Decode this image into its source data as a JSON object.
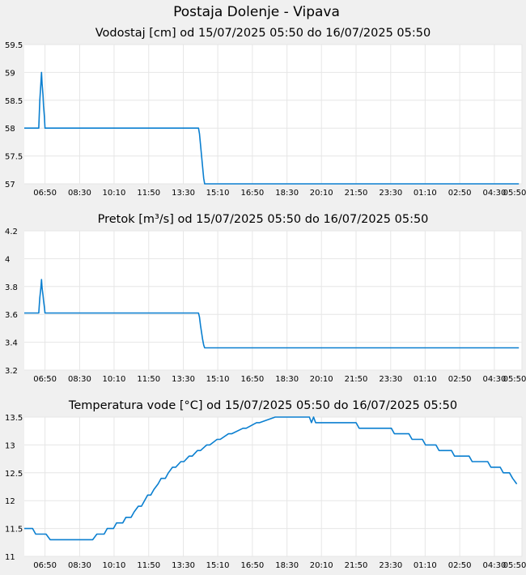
{
  "page_title": "Postaja Dolenje - Vipava",
  "colors": {
    "page_background": "#f0f0f0",
    "plot_background": "#ffffff",
    "grid": "#e6e6e6",
    "line": "#0a7fd0"
  },
  "chart_data": [
    {
      "type": "line",
      "title": "Vodostaj [cm] od 15/07/2025 05:50 do 16/07/2025 05:50",
      "x_unit": "hours since 15/07/2025 05:50",
      "xlim": [
        0,
        24
      ],
      "ylim": [
        57,
        59.5
      ],
      "y_ticks": [
        57,
        57.5,
        58,
        58.5,
        59,
        59.5
      ],
      "y_tick_labels": [
        "57",
        "57.5",
        "58",
        "58.5",
        "59",
        "59.5"
      ],
      "x_ticks": [
        1,
        2.67,
        4.33,
        6,
        7.67,
        9.33,
        11,
        12.67,
        14.33,
        16,
        17.67,
        19.33,
        21,
        22.67,
        24
      ],
      "x_tick_labels": [
        "06:50",
        "08:30",
        "10:10",
        "11:50",
        "13:30",
        "15:10",
        "16:50",
        "18:30",
        "20:10",
        "21:50",
        "23:30",
        "01:10",
        "02:50",
        "04:30",
        "05:50"
      ],
      "grid": true,
      "series": [
        {
          "x": [
            0,
            0.7,
            0.75,
            0.8,
            0.83,
            0.86,
            0.9,
            0.93,
            0.97,
            1.0,
            1.05,
            8.4,
            8.45,
            8.5,
            8.55,
            8.6,
            8.65,
            8.7,
            23.85
          ],
          "y": [
            58,
            58,
            58.5,
            58.8,
            59,
            58.8,
            58.6,
            58.4,
            58.2,
            58,
            58,
            58,
            57.9,
            57.7,
            57.5,
            57.3,
            57.1,
            57,
            57
          ]
        }
      ]
    },
    {
      "type": "line",
      "title": "Pretok [m³/s] od 15/07/2025 05:50 do 16/07/2025 05:50",
      "x_unit": "hours since 15/07/2025 05:50",
      "xlim": [
        0,
        24
      ],
      "ylim": [
        3.2,
        4.2
      ],
      "y_ticks": [
        3.2,
        3.4,
        3.6,
        3.8,
        4.0,
        4.2
      ],
      "y_tick_labels": [
        "3.2",
        "3.4",
        "3.6",
        "3.8",
        "4",
        "4.2"
      ],
      "x_ticks": [
        1,
        2.67,
        4.33,
        6,
        7.67,
        9.33,
        11,
        12.67,
        14.33,
        16,
        17.67,
        19.33,
        21,
        22.67,
        24
      ],
      "x_tick_labels": [
        "06:50",
        "08:30",
        "10:10",
        "11:50",
        "13:30",
        "15:10",
        "16:50",
        "18:30",
        "20:10",
        "21:50",
        "23:30",
        "01:10",
        "02:50",
        "04:30",
        "05:50"
      ],
      "grid": true,
      "series": [
        {
          "x": [
            0,
            0.7,
            0.75,
            0.8,
            0.83,
            0.86,
            0.9,
            0.93,
            0.97,
            1.0,
            1.05,
            8.4,
            8.45,
            8.5,
            8.55,
            8.6,
            8.65,
            8.7,
            23.85
          ],
          "y": [
            3.61,
            3.61,
            3.72,
            3.79,
            3.85,
            3.79,
            3.74,
            3.7,
            3.65,
            3.61,
            3.61,
            3.61,
            3.58,
            3.52,
            3.47,
            3.42,
            3.38,
            3.36,
            3.36
          ]
        }
      ]
    },
    {
      "type": "line",
      "title": "Temperatura vode [°C] od 15/07/2025 05:50 do 16/07/2025 05:50",
      "x_unit": "hours since 15/07/2025 05:50",
      "xlim": [
        0,
        24
      ],
      "ylim": [
        11,
        13.5
      ],
      "y_ticks": [
        11,
        11.5,
        12,
        12.5,
        13,
        13.5
      ],
      "y_tick_labels": [
        "11",
        "11.5",
        "12",
        "12.5",
        "13",
        "13.5"
      ],
      "x_ticks": [
        1,
        2.67,
        4.33,
        6,
        7.67,
        9.33,
        11,
        12.67,
        14.33,
        16,
        17.67,
        19.33,
        21,
        22.67,
        24
      ],
      "x_tick_labels": [
        "06:50",
        "08:30",
        "10:10",
        "11:50",
        "13:30",
        "15:10",
        "16:50",
        "18:30",
        "20:10",
        "21:50",
        "23:30",
        "01:10",
        "02:50",
        "04:30",
        "05:50"
      ],
      "grid": true,
      "series": [
        {
          "x": [
            0,
            0.4,
            0.55,
            1.05,
            1.25,
            3.3,
            3.5,
            3.85,
            4.0,
            4.3,
            4.45,
            4.75,
            4.9,
            5.15,
            5.3,
            5.5,
            5.65,
            5.8,
            5.95,
            6.1,
            6.25,
            6.45,
            6.6,
            6.8,
            6.95,
            7.15,
            7.3,
            7.55,
            7.7,
            7.95,
            8.1,
            8.35,
            8.5,
            8.8,
            8.95,
            9.3,
            9.45,
            9.85,
            10.0,
            10.55,
            10.7,
            11.2,
            11.35,
            12.1,
            12.25,
            13.75,
            13.85,
            13.95,
            14.05,
            14.15,
            16.0,
            16.15,
            17.7,
            17.85,
            18.55,
            18.7,
            19.2,
            19.35,
            19.85,
            20.0,
            20.6,
            20.75,
            21.45,
            21.6,
            22.35,
            22.5,
            22.95,
            23.1,
            23.4,
            23.55,
            23.75
          ],
          "y": [
            11.5,
            11.5,
            11.4,
            11.4,
            11.3,
            11.3,
            11.4,
            11.4,
            11.5,
            11.5,
            11.6,
            11.6,
            11.7,
            11.7,
            11.8,
            11.9,
            11.9,
            12.0,
            12.1,
            12.1,
            12.2,
            12.3,
            12.4,
            12.4,
            12.5,
            12.6,
            12.6,
            12.7,
            12.7,
            12.8,
            12.8,
            12.9,
            12.9,
            13.0,
            13.0,
            13.1,
            13.1,
            13.2,
            13.2,
            13.3,
            13.3,
            13.4,
            13.4,
            13.5,
            13.5,
            13.5,
            13.4,
            13.5,
            13.4,
            13.4,
            13.4,
            13.3,
            13.3,
            13.2,
            13.2,
            13.1,
            13.1,
            13.0,
            13.0,
            12.9,
            12.9,
            12.8,
            12.8,
            12.7,
            12.7,
            12.6,
            12.6,
            12.5,
            12.5,
            12.4,
            12.3
          ]
        }
      ]
    }
  ]
}
